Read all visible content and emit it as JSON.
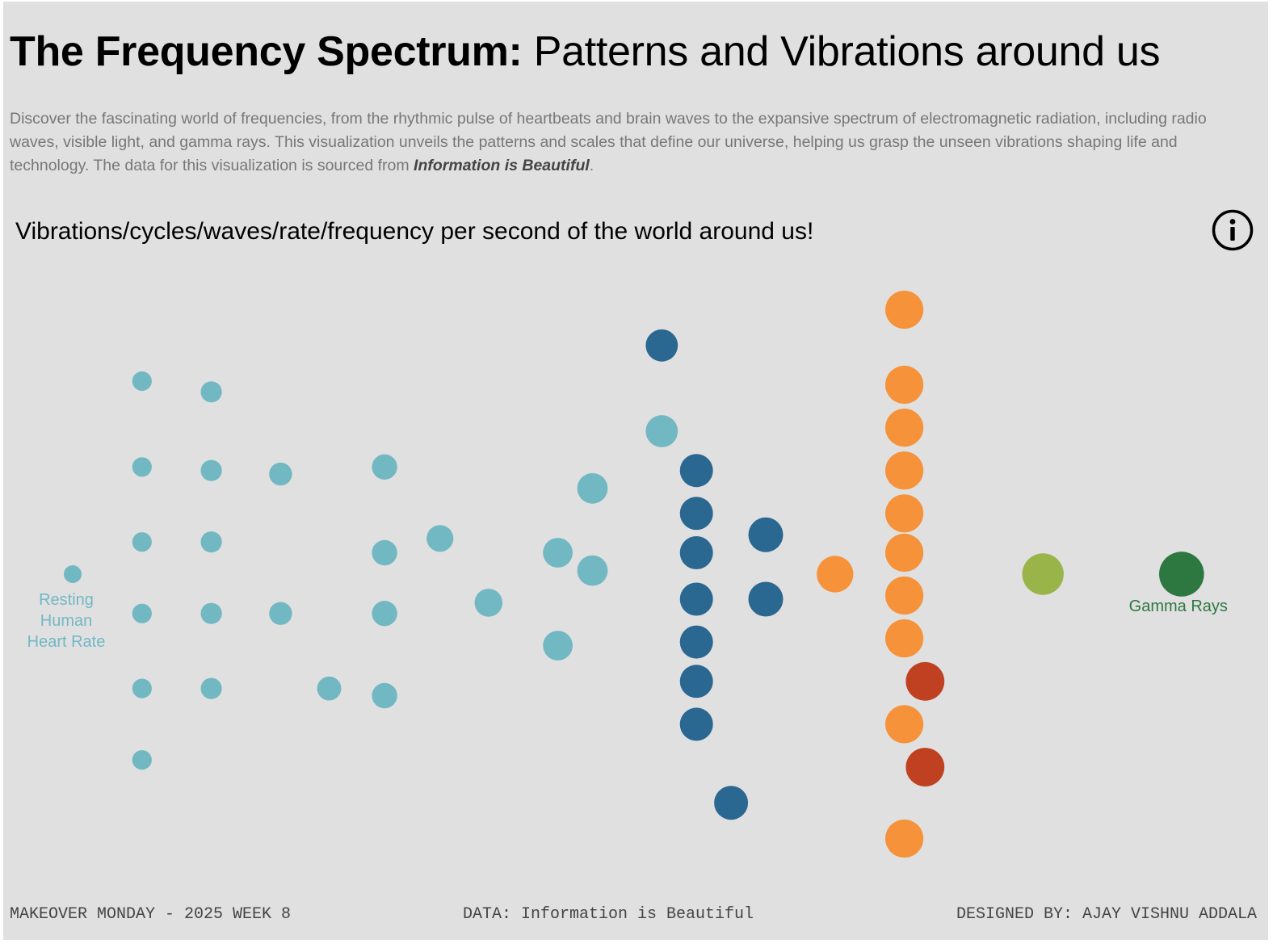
{
  "header": {
    "title_bold": "The Frequency Spectrum:",
    "title_rest": " Patterns and Vibrations around us",
    "description_before": "Discover the fascinating world of frequencies, from the rhythmic pulse of heartbeats and brain waves to the expansive spectrum of electromagnetic radiation, including radio waves, visible light, and gamma rays. This visualization unveils the patterns and scales that define our universe, helping us grasp the unseen vibrations shaping life and technology. The data for this visualization is sourced from ",
    "description_source": "Information is Beautiful",
    "description_after": ".",
    "subtitle": "Vibrations/cycles/waves/rate/frequency per second of the world around us!"
  },
  "footer": {
    "left": "MAKEOVER MONDAY - 2025 WEEK 8",
    "center": "DATA: Information is Beautiful",
    "right": "DESIGNED BY: AJAY VISHNU ADDALA"
  },
  "icons": {
    "info": "info-circle-icon"
  },
  "colors": {
    "background": "#e0e0e0",
    "light_teal": "#72b8c3",
    "dark_blue": "#2a6791",
    "orange": "#f5923a",
    "red": "#bf4121",
    "light_green": "#99b54a",
    "dark_green": "#2c7840"
  },
  "chart_data": {
    "type": "scatter",
    "title": "",
    "xlabel": "",
    "ylabel": "",
    "grid": false,
    "legend": "none",
    "series": [
      {
        "color": "#72b8c3",
        "points": [
          {
            "x": 1,
            "y": 0
          },
          {
            "x": 2,
            "y": 2.7
          },
          {
            "x": 2,
            "y": 1.5
          },
          {
            "x": 2,
            "y": 0.45
          },
          {
            "x": 2,
            "y": -0.55
          },
          {
            "x": 2,
            "y": -1.6
          },
          {
            "x": 2,
            "y": -2.6
          },
          {
            "x": 3,
            "y": 2.55
          },
          {
            "x": 3,
            "y": 1.45
          },
          {
            "x": 3,
            "y": 0.45
          },
          {
            "x": 3,
            "y": -0.55
          },
          {
            "x": 3,
            "y": -1.6
          },
          {
            "x": 4,
            "y": 1.4
          },
          {
            "x": 4,
            "y": -0.55
          },
          {
            "x": 4.7,
            "y": -1.6
          },
          {
            "x": 5.5,
            "y": 1.5
          },
          {
            "x": 5.5,
            "y": 0.3
          },
          {
            "x": 5.5,
            "y": -0.55
          },
          {
            "x": 5.5,
            "y": -1.7
          },
          {
            "x": 6.3,
            "y": 0.5
          },
          {
            "x": 7,
            "y": -0.4
          },
          {
            "x": 8,
            "y": 0.3
          },
          {
            "x": 8,
            "y": -1.0
          },
          {
            "x": 8.5,
            "y": 1.2
          },
          {
            "x": 8.5,
            "y": 0.05
          },
          {
            "x": 9.5,
            "y": 2.0
          }
        ]
      },
      {
        "color": "#2a6791",
        "points": [
          {
            "x": 9.5,
            "y": 3.2
          },
          {
            "x": 10,
            "y": 1.45
          },
          {
            "x": 10,
            "y": 0.85
          },
          {
            "x": 10,
            "y": 0.3
          },
          {
            "x": 10,
            "y": -0.35
          },
          {
            "x": 10,
            "y": -0.95
          },
          {
            "x": 10,
            "y": -1.5
          },
          {
            "x": 10,
            "y": -2.1
          },
          {
            "x": 10.5,
            "y": -3.2
          },
          {
            "x": 11,
            "y": 0.55
          },
          {
            "x": 11,
            "y": -0.35
          }
        ]
      },
      {
        "color": "#f5923a",
        "points": [
          {
            "x": 12,
            "y": 0
          },
          {
            "x": 13,
            "y": 3.7
          },
          {
            "x": 13,
            "y": 2.65
          },
          {
            "x": 13,
            "y": 2.05
          },
          {
            "x": 13,
            "y": 1.45
          },
          {
            "x": 13,
            "y": 0.85
          },
          {
            "x": 13,
            "y": 0.3
          },
          {
            "x": 13,
            "y": -0.3
          },
          {
            "x": 13,
            "y": -0.9
          },
          {
            "x": 13,
            "y": -2.1
          },
          {
            "x": 13,
            "y": -3.7
          }
        ]
      },
      {
        "color": "#bf4121",
        "points": [
          {
            "x": 13.3,
            "y": -1.5
          },
          {
            "x": 13.3,
            "y": -2.7
          }
        ]
      },
      {
        "color": "#99b54a",
        "points": [
          {
            "x": 15,
            "y": 0
          }
        ]
      },
      {
        "color": "#2c7840",
        "points": [
          {
            "x": 17,
            "y": 0
          }
        ]
      }
    ],
    "annotations": [
      {
        "lines": [
          "Resting",
          "Human",
          "Heart Rate"
        ],
        "color": "#72b8c3"
      },
      {
        "lines": [
          "Gamma Rays"
        ],
        "color": "#2c7840"
      }
    ]
  }
}
